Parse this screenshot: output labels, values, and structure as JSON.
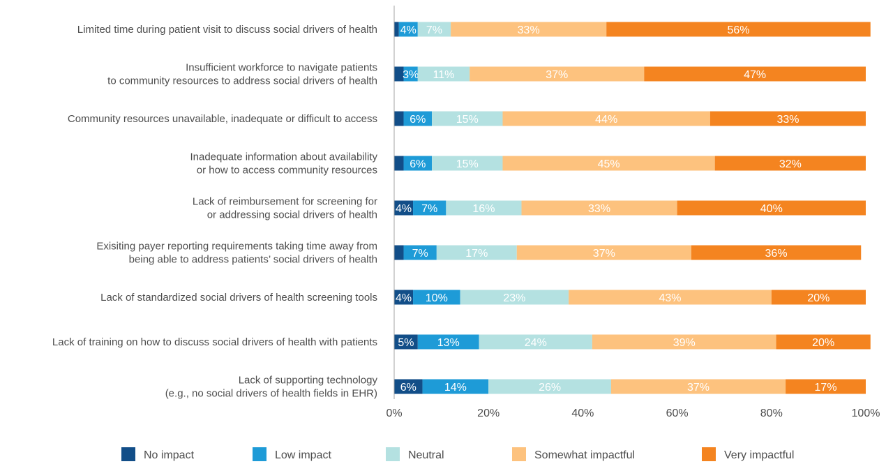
{
  "chart_data": {
    "type": "bar",
    "orientation": "horizontal",
    "stacked": true,
    "title": "",
    "xlabel": "",
    "ylabel": "",
    "xlim": [
      0,
      100
    ],
    "x_ticks": [
      "0%",
      "20%",
      "40%",
      "60%",
      "80%",
      "100%"
    ],
    "grid": false,
    "legend_position": "bottom",
    "categories": [
      [
        "Limited time during patient visit to discuss social drivers of health"
      ],
      [
        "Insufficient workforce to navigate patients",
        "to community resources to address social drivers of health"
      ],
      [
        "Community resources unavailable, inadequate or difficult to access"
      ],
      [
        "Inadequate information about availability",
        "or how to access community resources"
      ],
      [
        "Lack of reimbursement for screening for",
        "or addressing social drivers of health"
      ],
      [
        "Exisiting payer reporting requirements taking time away from",
        "being able to address patients’ social drivers of health"
      ],
      [
        "Lack of standardized social drivers of health screening tools"
      ],
      [
        "Lack of training on how to discuss social drivers of health with patients"
      ],
      [
        "Lack of supporting technology",
        "(e.g., no social drivers of health fields in EHR)"
      ]
    ],
    "series": [
      {
        "name": "No impact",
        "color": "#124e88",
        "values": [
          1,
          2,
          2,
          2,
          4,
          2,
          4,
          5,
          6
        ],
        "labels": [
          "",
          "",
          "",
          "",
          "4%",
          "",
          "4%",
          "5%",
          "6%"
        ]
      },
      {
        "name": "Low impact",
        "color": "#1e9bd7",
        "values": [
          4,
          3,
          6,
          6,
          7,
          7,
          10,
          13,
          14
        ],
        "labels": [
          "4%",
          "3%",
          "6%",
          "6%",
          "7%",
          "7%",
          "10%",
          "13%",
          "14%"
        ]
      },
      {
        "name": "Neutral",
        "color": "#b4e1e1",
        "values": [
          7,
          11,
          15,
          15,
          16,
          17,
          23,
          24,
          26
        ],
        "labels": [
          "7%",
          "11%",
          "15%",
          "15%",
          "16%",
          "17%",
          "23%",
          "24%",
          "26%"
        ]
      },
      {
        "name": "Somewhat impactful",
        "color": "#fdc27e",
        "values": [
          33,
          37,
          44,
          45,
          33,
          37,
          43,
          39,
          37
        ],
        "labels": [
          "33%",
          "37%",
          "44%",
          "45%",
          "33%",
          "37%",
          "43%",
          "39%",
          "37%"
        ]
      },
      {
        "name": "Very impactful",
        "color": "#f48420",
        "values": [
          56,
          47,
          33,
          32,
          40,
          36,
          20,
          20,
          17
        ],
        "labels": [
          "56%",
          "47%",
          "33%",
          "32%",
          "40%",
          "36%",
          "20%",
          "20%",
          "17%"
        ]
      }
    ]
  }
}
